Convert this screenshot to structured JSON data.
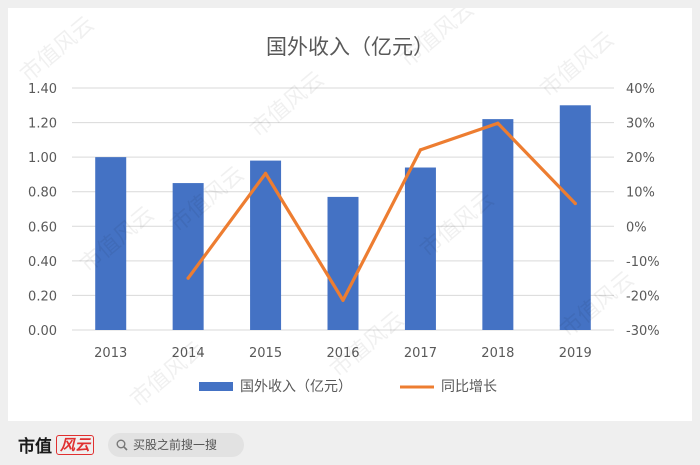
{
  "chart_data": {
    "type": "bar",
    "title": "国外收入（亿元）",
    "categories": [
      "2013",
      "2014",
      "2015",
      "2016",
      "2017",
      "2018",
      "2019"
    ],
    "series": [
      {
        "name": "国外收入（亿元）",
        "type": "bar",
        "axis": "left",
        "color": "#4472c4",
        "values": [
          1.0,
          0.85,
          0.98,
          0.77,
          0.94,
          1.22,
          1.3
        ]
      },
      {
        "name": "同比增长",
        "type": "line",
        "axis": "right",
        "color": "#ed7d31",
        "values": [
          null,
          -0.15,
          0.153,
          -0.214,
          0.221,
          0.298,
          0.066
        ]
      }
    ],
    "y_left": {
      "min": 0,
      "max": 1.4,
      "step": 0.2,
      "ticks": [
        "0.00",
        "0.20",
        "0.40",
        "0.60",
        "0.80",
        "1.00",
        "1.20",
        "1.40"
      ]
    },
    "y_right": {
      "min": -0.3,
      "max": 0.4,
      "step": 0.1,
      "ticks": [
        "-30%",
        "-20%",
        "-10%",
        "0%",
        "10%",
        "20%",
        "30%",
        "40%"
      ]
    },
    "grid": true,
    "legend": "bottom"
  },
  "watermark": "市值风云",
  "footer": {
    "brand": "市值",
    "brand_tag": "风云",
    "search_placeholder": "买股之前搜一搜",
    "search_icon": "search-icon"
  }
}
